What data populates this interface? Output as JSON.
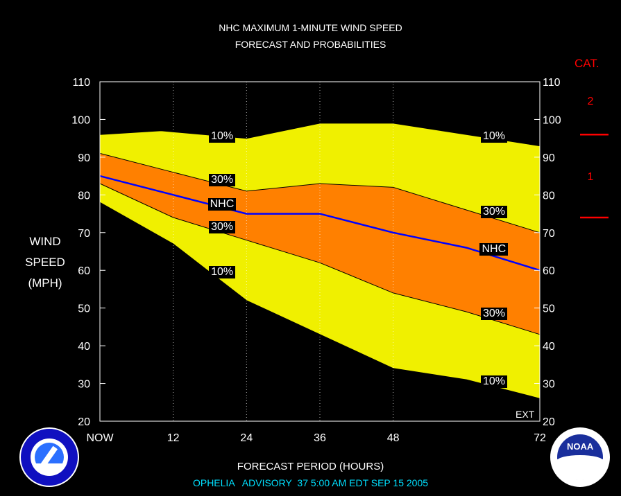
{
  "title_line1": "NHC MAXIMUM 1-MINUTE WIND SPEED",
  "title_line2": "FORECAST AND PROBABILITIES",
  "ylabel": [
    "WIND",
    "SPEED",
    "(MPH)"
  ],
  "xlabel": "FORECAST PERIOD (HOURS)",
  "advisory": "OPHELIA   ADVISORY  37 5:00 AM EDT SEP 15 2005",
  "ext_label": "EXT",
  "category": {
    "title": "CAT.",
    "labels": [
      "2",
      "1"
    ],
    "boundaries": [
      96,
      74
    ],
    "color": "#ff0000"
  },
  "chart_data": {
    "type": "area",
    "x": [
      0,
      12,
      24,
      36,
      48,
      72
    ],
    "x_ticks": [
      0,
      12,
      24,
      36,
      48,
      72
    ],
    "x_tick_labels": [
      "NOW",
      "12",
      "24",
      "36",
      "48",
      "72"
    ],
    "y_ticks": [
      20,
      30,
      40,
      50,
      60,
      70,
      80,
      90,
      100,
      110
    ],
    "ylim": [
      20,
      110
    ],
    "xlim": [
      0,
      72
    ],
    "colors": {
      "band_10": "#f0f000",
      "band_30": "#ff8000",
      "nhc": "#0000ff",
      "background": "#000000"
    },
    "series": [
      {
        "name": "10%",
        "role": "upper_10",
        "points": [
          [
            0,
            96
          ],
          [
            10,
            97
          ],
          [
            24,
            95
          ],
          [
            36,
            99
          ],
          [
            48,
            99
          ],
          [
            60,
            96
          ],
          [
            72,
            93
          ]
        ]
      },
      {
        "name": "30%",
        "role": "upper_30",
        "points": [
          [
            0,
            91
          ],
          [
            12,
            86
          ],
          [
            24,
            81
          ],
          [
            36,
            83
          ],
          [
            48,
            82
          ],
          [
            60,
            76
          ],
          [
            72,
            70
          ]
        ]
      },
      {
        "name": "NHC",
        "role": "nhc",
        "points": [
          [
            0,
            85
          ],
          [
            12,
            80
          ],
          [
            24,
            75
          ],
          [
            36,
            75
          ],
          [
            48,
            70
          ],
          [
            60,
            66
          ],
          [
            72,
            60
          ]
        ]
      },
      {
        "name": "30%",
        "role": "lower_30",
        "points": [
          [
            0,
            83
          ],
          [
            12,
            74
          ],
          [
            24,
            68
          ],
          [
            36,
            62
          ],
          [
            48,
            54
          ],
          [
            60,
            49
          ],
          [
            72,
            43
          ]
        ]
      },
      {
        "name": "10%",
        "role": "lower_10",
        "points": [
          [
            0,
            78
          ],
          [
            12,
            67
          ],
          [
            24,
            52
          ],
          [
            36,
            43
          ],
          [
            48,
            34
          ],
          [
            60,
            31
          ],
          [
            72,
            26
          ]
        ]
      }
    ],
    "annotations": [
      {
        "text": "10%",
        "x": 20,
        "y": 95.5
      },
      {
        "text": "30%",
        "x": 20,
        "y": 84
      },
      {
        "text": "NHC",
        "x": 20,
        "y": 77.5
      },
      {
        "text": "30%",
        "x": 20,
        "y": 71.5
      },
      {
        "text": "10%",
        "x": 20,
        "y": 59.5
      },
      {
        "text": "10%",
        "x": 64.5,
        "y": 95.5
      },
      {
        "text": "30%",
        "x": 64.5,
        "y": 75.5
      },
      {
        "text": "NHC",
        "x": 64.5,
        "y": 65.5
      },
      {
        "text": "30%",
        "x": 64.5,
        "y": 48.5
      },
      {
        "text": "10%",
        "x": 64.5,
        "y": 30.5
      }
    ]
  }
}
